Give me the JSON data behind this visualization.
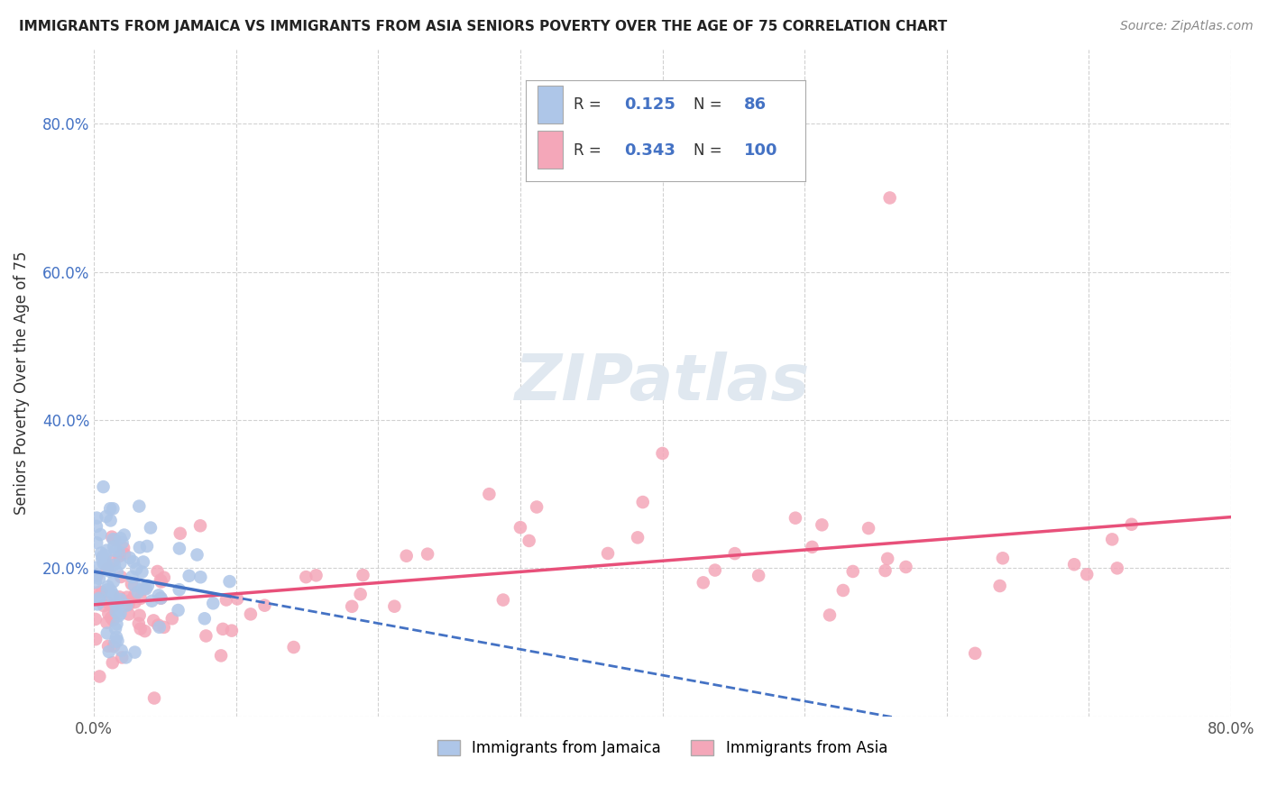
{
  "title": "IMMIGRANTS FROM JAMAICA VS IMMIGRANTS FROM ASIA SENIORS POVERTY OVER THE AGE OF 75 CORRELATION CHART",
  "source": "Source: ZipAtlas.com",
  "ylabel": "Seniors Poverty Over the Age of 75",
  "xlim": [
    0.0,
    0.8
  ],
  "ylim": [
    0.0,
    0.9
  ],
  "xtick_labels": [
    "0.0%",
    "",
    "",
    "",
    "",
    "",
    "",
    "",
    "80.0%"
  ],
  "ytick_labels": [
    "",
    "20.0%",
    "40.0%",
    "60.0%",
    "80.0%"
  ],
  "R_jamaica": 0.125,
  "N_jamaica": 86,
  "R_asia": 0.343,
  "N_asia": 100,
  "color_jamaica": "#aec6e8",
  "color_asia": "#f4a7b9",
  "line_color_jamaica_solid": "#4472c4",
  "line_color_jamaica_dash": "#4472c4",
  "line_color_asia": "#e8507a",
  "text_color_stats": "#4472c4",
  "text_color_label": "#333333",
  "watermark_color": "#e0e8f0",
  "background_color": "#ffffff",
  "grid_color": "#cccccc"
}
